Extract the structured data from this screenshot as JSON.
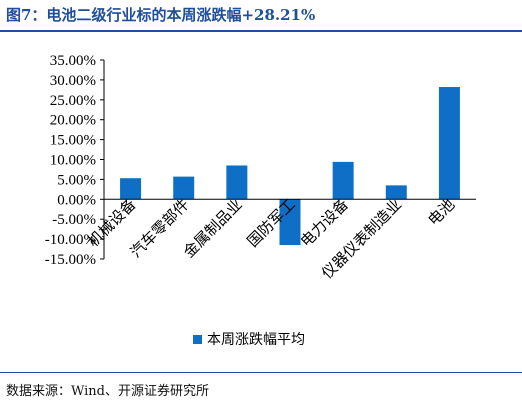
{
  "title": "图7：电池二级行业标的本周涨跌幅+28.21%",
  "source": "数据来源：Wind、开源证券研究所",
  "colors": {
    "bar": "#0f6fc6",
    "title": "#1f4e9c",
    "axis": "#000000"
  },
  "chart_data": {
    "type": "bar",
    "categories": [
      "机械设备",
      "汽车零部件",
      "金属制品业",
      "国防军工",
      "电力设备",
      "仪器仪表制造业",
      "电池"
    ],
    "series": [
      {
        "name": "本周涨跌幅平均",
        "values": [
          5.3,
          5.7,
          8.5,
          -11.5,
          9.4,
          3.5,
          28.21
        ]
      }
    ],
    "yticks": [
      "35.00%",
      "30.00%",
      "25.00%",
      "20.00%",
      "15.00%",
      "10.00%",
      "5.00%",
      "0.00%",
      "-5.00%",
      "-10.00%",
      "-15.00%"
    ],
    "ylim": [
      -15,
      35
    ],
    "legend_position": "bottom",
    "grid": false
  }
}
